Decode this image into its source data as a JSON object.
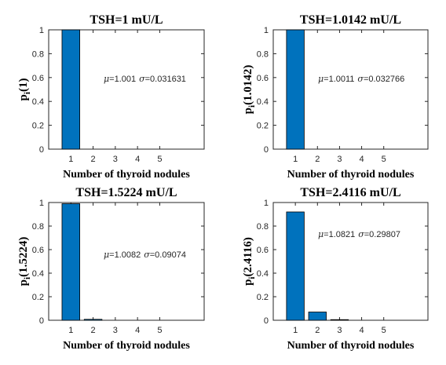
{
  "colors": {
    "bar": "#0072bd",
    "bar_edge": "#000000",
    "axis": "#262626",
    "background": "#ffffff"
  },
  "chart_data": [
    {
      "type": "bar",
      "title": "TSH=1 mU/L",
      "xlabel": "Number of thyroid nodules",
      "ylabel_main": "p",
      "ylabel_sub": "i",
      "ylabel_arg": "(1)",
      "categories": [
        "1",
        "2",
        "3",
        "4",
        "5"
      ],
      "values": [
        1.0,
        0,
        0,
        0,
        0
      ],
      "xlim": [
        0,
        7
      ],
      "ylim": [
        0,
        1
      ],
      "yticks": [
        "0",
        "0.2",
        "0.4",
        "0.6",
        "0.8",
        "1"
      ],
      "annotation": {
        "mu_symbol": "μ",
        "mu_value": "=1.001",
        "sigma_symbol": "σ",
        "sigma_value": "=0.031631"
      }
    },
    {
      "type": "bar",
      "title": "TSH=1.0142 mU/L",
      "xlabel": "Number of thyroid nodules",
      "ylabel_main": "p",
      "ylabel_sub": "i",
      "ylabel_arg": "(1.0142)",
      "categories": [
        "1",
        "2",
        "3",
        "4",
        "5"
      ],
      "values": [
        1.0,
        0,
        0,
        0,
        0
      ],
      "xlim": [
        0,
        7
      ],
      "ylim": [
        0,
        1
      ],
      "yticks": [
        "0",
        "0.2",
        "0.4",
        "0.6",
        "0.8",
        "1"
      ],
      "annotation": {
        "mu_symbol": "μ",
        "mu_value": "=1.0011",
        "sigma_symbol": "σ",
        "sigma_value": "=0.032766"
      }
    },
    {
      "type": "bar",
      "title": "TSH=1.5224 mU/L",
      "xlabel": "Number of thyroid nodules",
      "ylabel_main": "p",
      "ylabel_sub": "i",
      "ylabel_arg": "(1.5224)",
      "categories": [
        "1",
        "2",
        "3",
        "4",
        "5"
      ],
      "values": [
        0.99,
        0.008,
        0,
        0,
        0
      ],
      "xlim": [
        0,
        7
      ],
      "ylim": [
        0,
        1
      ],
      "yticks": [
        "0",
        "0.2",
        "0.4",
        "0.6",
        "0.8",
        "1"
      ],
      "annotation": {
        "mu_symbol": "μ",
        "mu_value": "=1.0082",
        "sigma_symbol": "σ",
        "sigma_value": "=0.09074"
      }
    },
    {
      "type": "bar",
      "title": "TSH=2.4116 mU/L",
      "xlabel": "Number of thyroid nodules",
      "ylabel_main": "p",
      "ylabel_sub": "i",
      "ylabel_arg": "(2.4116)",
      "categories": [
        "1",
        "2",
        "3",
        "4",
        "5"
      ],
      "values": [
        0.92,
        0.07,
        0.002,
        0,
        0
      ],
      "xlim": [
        0,
        7
      ],
      "ylim": [
        0,
        1
      ],
      "yticks": [
        "0",
        "0.2",
        "0.4",
        "0.6",
        "0.8",
        "1"
      ],
      "annotation": {
        "mu_symbol": "μ",
        "mu_value": "=1.0821",
        "sigma_symbol": "σ",
        "sigma_value": "=0.29807"
      }
    }
  ]
}
